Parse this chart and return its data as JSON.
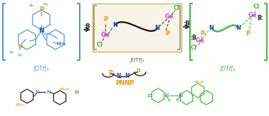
{
  "bg_color": "#ffffff",
  "highlight_bg": "#f8f4e8",
  "highlight_border": "#c8b860",
  "arrow_color": "#333333",
  "colors": {
    "P": "#ff8c00",
    "N": "#2255cc",
    "Ge": "#cc44cc",
    "Cl": "#44bb44",
    "B_dark": "#222222",
    "bracket_left": "#5599cc",
    "bracket_right": "#44bb44",
    "PNNP": "#ff8c00",
    "struct_left": "#5599cc",
    "struct_black": "#222222"
  },
  "center_otf": "[OTf]₂",
  "left_otf": "[OTf]₃",
  "right_otf": "[OTf]₂",
  "pnnp_label": "PNNP",
  "figsize": [
    3.78,
    1.64
  ],
  "dpi": 100
}
